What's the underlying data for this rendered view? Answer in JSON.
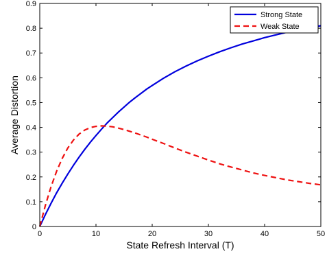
{
  "chart_data": {
    "type": "line",
    "xlabel": "State Refresh Interval (T)",
    "ylabel": "Average Distortion",
    "xlim": [
      0,
      50
    ],
    "ylim": [
      0,
      0.9
    ],
    "xticks": [
      0,
      10,
      20,
      30,
      40,
      50
    ],
    "yticks": [
      0,
      0.1,
      0.2,
      0.3,
      0.4,
      0.5,
      0.6,
      0.7,
      0.8,
      0.9
    ],
    "xtick_labels": [
      "0",
      "10",
      "20",
      "30",
      "40",
      "50"
    ],
    "ytick_labels": [
      "0",
      "0.1",
      "0.2",
      "0.3",
      "0.4",
      "0.5",
      "0.6",
      "0.7",
      "0.8",
      "0.9"
    ],
    "grid": false,
    "legend_position": "top-right",
    "series": [
      {
        "name": "Strong State",
        "color": "#0000dd",
        "style": "solid",
        "x": [
          0,
          1,
          2,
          3,
          4,
          5,
          6,
          7,
          8,
          9,
          10,
          11,
          12,
          13,
          14,
          15,
          16,
          17,
          18,
          19,
          20,
          22,
          24,
          26,
          28,
          30,
          32,
          34,
          36,
          38,
          40,
          42,
          44,
          46,
          48,
          50
        ],
        "values": [
          0,
          0.048,
          0.093,
          0.136,
          0.175,
          0.212,
          0.247,
          0.28,
          0.311,
          0.34,
          0.367,
          0.393,
          0.418,
          0.44,
          0.462,
          0.482,
          0.502,
          0.52,
          0.537,
          0.554,
          0.569,
          0.598,
          0.624,
          0.647,
          0.668,
          0.687,
          0.705,
          0.721,
          0.736,
          0.749,
          0.762,
          0.773,
          0.784,
          0.793,
          0.802,
          0.81
        ]
      },
      {
        "name": "Weak State",
        "color": "#ee1111",
        "style": "dashed",
        "x": [
          0,
          1,
          2,
          3,
          4,
          5,
          6,
          7,
          8,
          9,
          10,
          11,
          12,
          13,
          14,
          15,
          16,
          17,
          18,
          19,
          20,
          22,
          24,
          26,
          28,
          30,
          32,
          34,
          36,
          38,
          40,
          42,
          44,
          46,
          48,
          50
        ],
        "values": [
          0,
          0.085,
          0.16,
          0.223,
          0.275,
          0.317,
          0.349,
          0.373,
          0.389,
          0.399,
          0.404,
          0.406,
          0.405,
          0.402,
          0.397,
          0.391,
          0.384,
          0.377,
          0.369,
          0.361,
          0.352,
          0.335,
          0.317,
          0.3,
          0.284,
          0.268,
          0.253,
          0.24,
          0.228,
          0.216,
          0.206,
          0.197,
          0.188,
          0.181,
          0.174,
          0.168
        ]
      }
    ]
  }
}
